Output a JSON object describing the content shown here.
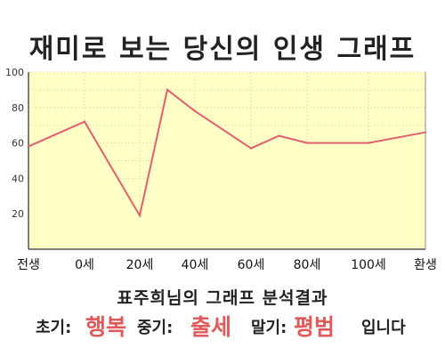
{
  "title": "재미로 보는 당신의 인생 그래프",
  "subtitle": "표주희님의 그래프 분석결과",
  "result": {
    "early_label": "초기:",
    "early_value": "행복",
    "middle_label": "중기:",
    "middle_value": "출세",
    "late_label": "말기:",
    "late_value": "평범",
    "suffix": "입니다"
  },
  "colors": {
    "line": "#e06070",
    "fill": "#ffffc6",
    "highlight": "#e05a5a"
  },
  "chart_data": {
    "type": "area",
    "x_ticks": [
      "전생",
      "0세",
      "20세",
      "40세",
      "60세",
      "80세",
      "100세",
      "환생"
    ],
    "y_ticks": [
      "20",
      "40",
      "60",
      "80",
      "100"
    ],
    "ylim": [
      0,
      100
    ],
    "grid": true,
    "points": [
      {
        "x": "전생",
        "y": 58
      },
      {
        "x": "0세",
        "y": 72
      },
      {
        "x": "20세",
        "y": 19
      },
      {
        "x": "30세",
        "y": 90
      },
      {
        "x": "40세",
        "y": 78
      },
      {
        "x": "60세",
        "y": 57
      },
      {
        "x": "70세",
        "y": 64
      },
      {
        "x": "80세",
        "y": 60
      },
      {
        "x": "100세",
        "y": 60
      },
      {
        "x": "환생",
        "y": 66
      }
    ]
  }
}
